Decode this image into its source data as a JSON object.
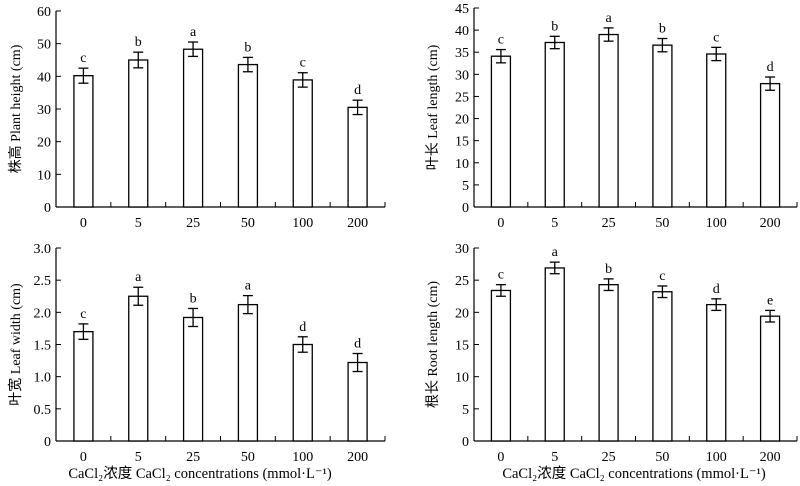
{
  "figure": {
    "xlabel_left": "CaCl₂浓度 CaCl₂ concentrations (mmol·L⁻¹)",
    "xlabel_right": "CaCl₂浓度 CaCl₂ concentrations (mmol·L⁻¹)"
  },
  "chart_data": [
    {
      "type": "bar",
      "panel": "top-left",
      "categories": [
        "0",
        "5",
        "25",
        "50",
        "100",
        "200"
      ],
      "values": [
        40.2,
        45.0,
        48.3,
        43.6,
        38.9,
        30.5
      ],
      "errors": [
        2.3,
        2.4,
        2.2,
        2.2,
        2.2,
        2.2
      ],
      "significance": [
        "c",
        "b",
        "a",
        "b",
        "c",
        "d"
      ],
      "ylabel": "株高 Plant height (cm)",
      "ylim": [
        0,
        60
      ],
      "yticks": [
        0,
        10,
        20,
        30,
        40,
        50,
        60
      ],
      "grid": false
    },
    {
      "type": "bar",
      "panel": "top-right",
      "categories": [
        "0",
        "5",
        "25",
        "50",
        "100",
        "200"
      ],
      "values": [
        34.1,
        37.2,
        39.0,
        36.6,
        34.6,
        27.9
      ],
      "errors": [
        1.5,
        1.4,
        1.5,
        1.5,
        1.5,
        1.5
      ],
      "significance": [
        "c",
        "b",
        "a",
        "b",
        "c",
        "d"
      ],
      "ylabel": "叶长 Leaf length (cm)",
      "ylim": [
        0,
        45
      ],
      "yticks": [
        0,
        5,
        10,
        15,
        20,
        25,
        30,
        35,
        40,
        45
      ],
      "grid": false
    },
    {
      "type": "bar",
      "panel": "bottom-left",
      "categories": [
        "0",
        "5",
        "25",
        "50",
        "100",
        "200"
      ],
      "values": [
        1.7,
        2.25,
        1.92,
        2.12,
        1.5,
        1.22
      ],
      "errors": [
        0.12,
        0.14,
        0.14,
        0.14,
        0.12,
        0.14
      ],
      "significance": [
        "c",
        "a",
        "b",
        "a",
        "d",
        "d"
      ],
      "ylabel": "叶宽 Leaf width (cm)",
      "ylim": [
        0,
        3.0
      ],
      "yticks": [
        "0",
        "0.5",
        "1.0",
        "1.5",
        "2.0",
        "2.5",
        "3.0"
      ],
      "grid": false
    },
    {
      "type": "bar",
      "panel": "bottom-right",
      "categories": [
        "0",
        "5",
        "25",
        "50",
        "100",
        "200"
      ],
      "values": [
        23.4,
        26.9,
        24.3,
        23.2,
        21.2,
        19.4
      ],
      "errors": [
        0.9,
        0.9,
        0.9,
        0.9,
        0.9,
        0.9
      ],
      "significance": [
        "c",
        "a",
        "b",
        "c",
        "d",
        "e"
      ],
      "ylabel": "根长 Root length (cm)",
      "ylim": [
        0,
        30
      ],
      "yticks": [
        0,
        5,
        10,
        15,
        20,
        25,
        30
      ],
      "grid": false
    }
  ]
}
